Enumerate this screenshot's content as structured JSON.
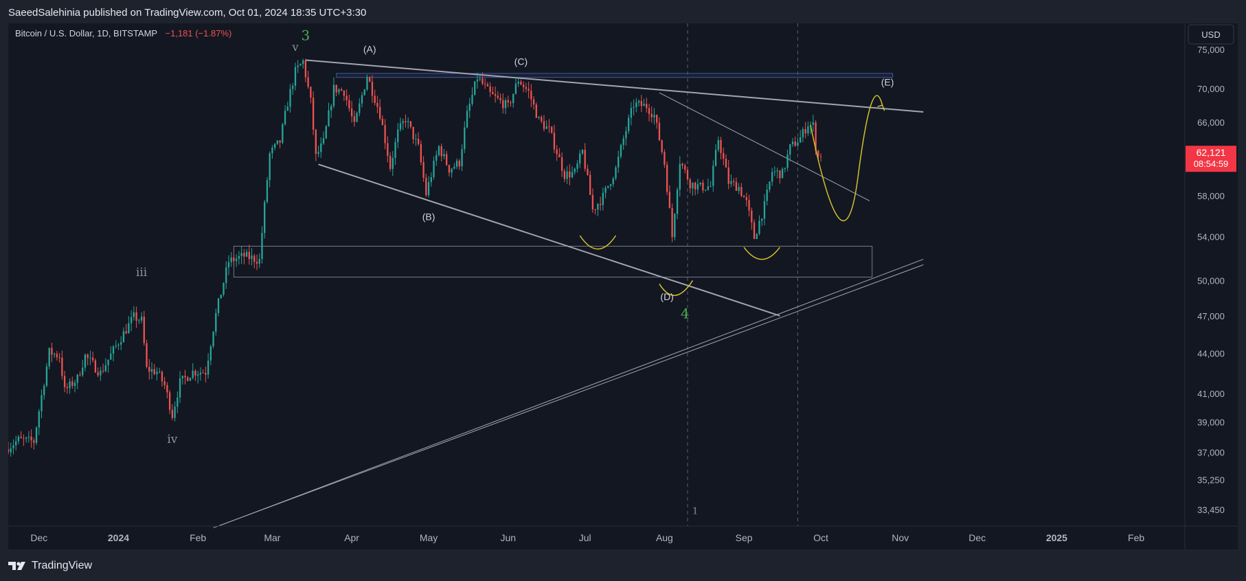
{
  "header": {
    "published_line": "SaeedSalehinia published on TradingView.com, Oct 01, 2024 18:35 UTC+3:30"
  },
  "footer": {
    "brand": "TradingView"
  },
  "colors": {
    "background": "#131722",
    "up": "#26a69a",
    "down": "#ef5350",
    "annotation_white": "#d1d4dc",
    "wave_green": "#4caf50",
    "forecast_yellow": "#d4c22a",
    "zone_blue": "#3f5a9e"
  },
  "chart_data": {
    "type": "candlestick",
    "symbol_line": "Bitcoin / U.S. Dollar, 1D, BITSTAMP",
    "change": "−1,181 (−1.87%)",
    "currency": "USD",
    "y_scale": "log",
    "ylim": [
      32500,
      78500
    ],
    "xlim": [
      "2023-11-19",
      "2025-02-20"
    ],
    "y_ticks": [
      "75,000",
      "70,000",
      "66,000",
      "58,000",
      "54,000",
      "50,000",
      "47,000",
      "44,000",
      "41,000",
      "39,000",
      "37,000",
      "35,250",
      "33,450"
    ],
    "y_tick_values": [
      75000,
      70000,
      66000,
      58000,
      54000,
      50000,
      47000,
      44000,
      41000,
      39000,
      37000,
      35250,
      33450
    ],
    "x_ticks": [
      {
        "date": "2023-12-01",
        "label": "Dec",
        "bold": false
      },
      {
        "date": "2024-01-01",
        "label": "2024",
        "bold": true
      },
      {
        "date": "2024-02-01",
        "label": "Feb",
        "bold": false
      },
      {
        "date": "2024-03-01",
        "label": "Mar",
        "bold": false
      },
      {
        "date": "2024-04-01",
        "label": "Apr",
        "bold": false
      },
      {
        "date": "2024-05-01",
        "label": "May",
        "bold": false
      },
      {
        "date": "2024-06-01",
        "label": "Jun",
        "bold": false
      },
      {
        "date": "2024-07-01",
        "label": "Jul",
        "bold": false
      },
      {
        "date": "2024-08-01",
        "label": "Aug",
        "bold": false
      },
      {
        "date": "2024-09-01",
        "label": "Sep",
        "bold": false
      },
      {
        "date": "2024-10-01",
        "label": "Oct",
        "bold": false
      },
      {
        "date": "2024-11-01",
        "label": "Nov",
        "bold": false
      },
      {
        "date": "2024-12-01",
        "label": "Dec",
        "bold": false
      },
      {
        "date": "2025-01-01",
        "label": "2025",
        "bold": true
      },
      {
        "date": "2025-02-01",
        "label": "Feb",
        "bold": false
      }
    ],
    "last_price": "62,121",
    "last_price_value": 62121,
    "countdown": "08:54:59",
    "price_path": [
      [
        "2023-11-19",
        37200
      ],
      [
        "2023-11-24",
        37800
      ],
      [
        "2023-11-30",
        37700
      ],
      [
        "2023-12-04",
        41900
      ],
      [
        "2023-12-06",
        44100
      ],
      [
        "2023-12-10",
        43800
      ],
      [
        "2023-12-12",
        41200
      ],
      [
        "2023-12-17",
        42100
      ],
      [
        "2023-12-20",
        43800
      ],
      [
        "2023-12-26",
        42500
      ],
      [
        "2024-01-02",
        44900
      ],
      [
        "2024-01-08",
        46900
      ],
      [
        "2024-01-11",
        46600
      ],
      [
        "2024-01-13",
        42800
      ],
      [
        "2024-01-17",
        42600
      ],
      [
        "2024-01-20",
        41600
      ],
      [
        "2024-01-23",
        39500
      ],
      [
        "2024-01-26",
        41800
      ],
      [
        "2024-01-31",
        42600
      ],
      [
        "2024-02-05",
        42600
      ],
      [
        "2024-02-09",
        47100
      ],
      [
        "2024-02-14",
        51700
      ],
      [
        "2024-02-20",
        52200
      ],
      [
        "2024-02-26",
        51800
      ],
      [
        "2024-02-28",
        57000
      ],
      [
        "2024-03-01",
        62400
      ],
      [
        "2024-03-05",
        63800
      ],
      [
        "2024-03-08",
        68300
      ],
      [
        "2024-03-11",
        72100
      ],
      [
        "2024-03-14",
        73400
      ],
      [
        "2024-03-17",
        68400
      ],
      [
        "2024-03-19",
        62100
      ],
      [
        "2024-03-22",
        63700
      ],
      [
        "2024-03-26",
        70000
      ],
      [
        "2024-03-30",
        69700
      ],
      [
        "2024-04-03",
        65500
      ],
      [
        "2024-04-08",
        71600
      ],
      [
        "2024-04-13",
        67000
      ],
      [
        "2024-04-17",
        61000
      ],
      [
        "2024-04-20",
        64800
      ],
      [
        "2024-04-23",
        66400
      ],
      [
        "2024-04-28",
        63100
      ],
      [
        "2024-05-01",
        58200
      ],
      [
        "2024-05-06",
        63200
      ],
      [
        "2024-05-10",
        60800
      ],
      [
        "2024-05-14",
        61500
      ],
      [
        "2024-05-17",
        66900
      ],
      [
        "2024-05-21",
        71400
      ],
      [
        "2024-05-26",
        69300
      ],
      [
        "2024-06-02",
        67800
      ],
      [
        "2024-06-06",
        71100
      ],
      [
        "2024-06-10",
        69600
      ],
      [
        "2024-06-14",
        66200
      ],
      [
        "2024-06-18",
        65100
      ],
      [
        "2024-06-24",
        60200
      ],
      [
        "2024-06-28",
        60400
      ],
      [
        "2024-07-01",
        62700
      ],
      [
        "2024-07-05",
        56600
      ],
      [
        "2024-07-09",
        57900
      ],
      [
        "2024-07-14",
        60800
      ],
      [
        "2024-07-17",
        64100
      ],
      [
        "2024-07-21",
        68100
      ],
      [
        "2024-07-26",
        67900
      ],
      [
        "2024-07-29",
        66800
      ],
      [
        "2024-08-02",
        61400
      ],
      [
        "2024-08-05",
        54000
      ],
      [
        "2024-08-08",
        61700
      ],
      [
        "2024-08-12",
        59300
      ],
      [
        "2024-08-16",
        58900
      ],
      [
        "2024-08-20",
        59000
      ],
      [
        "2024-08-23",
        64100
      ],
      [
        "2024-08-27",
        59400
      ],
      [
        "2024-08-31",
        58900
      ],
      [
        "2024-09-03",
        57300
      ],
      [
        "2024-09-06",
        53900
      ],
      [
        "2024-09-10",
        57000
      ],
      [
        "2024-09-13",
        60500
      ],
      [
        "2024-09-17",
        60300
      ],
      [
        "2024-09-20",
        63100
      ],
      [
        "2024-09-24",
        64200
      ],
      [
        "2024-09-27",
        65800
      ],
      [
        "2024-09-29",
        65600
      ],
      [
        "2024-09-30",
        63300
      ],
      [
        "2024-10-01",
        62121
      ]
    ],
    "annotations": [
      {
        "text": "3",
        "date": "2024-03-14",
        "price": 76200,
        "color": "green",
        "size": 20
      },
      {
        "text": "v",
        "date": "2024-03-10",
        "price": 74800,
        "color": "gray",
        "size": 16
      },
      {
        "text": "(A)",
        "date": "2024-04-08",
        "price": 74600,
        "color": "white",
        "size": 14
      },
      {
        "text": "(C)",
        "date": "2024-06-06",
        "price": 73000,
        "color": "white",
        "size": 14
      },
      {
        "text": "(B)",
        "date": "2024-05-01",
        "price": 55600,
        "color": "white",
        "size": 14
      },
      {
        "text": "(D)",
        "date": "2024-08-02",
        "price": 48300,
        "color": "white",
        "size": 14
      },
      {
        "text": "4",
        "date": "2024-08-09",
        "price": 46800,
        "color": "green",
        "size": 20
      },
      {
        "text": "(E)",
        "date": "2024-10-27",
        "price": 70400,
        "color": "white",
        "size": 14
      },
      {
        "text": "iii",
        "date": "2024-01-10",
        "price": 50400,
        "color": "gray",
        "size": 17
      },
      {
        "text": "iv",
        "date": "2024-01-22",
        "price": 37600,
        "color": "gray",
        "size": 17
      },
      {
        "text": "1",
        "date": "2024-08-13",
        "price": 33200,
        "color": "gray",
        "size": 13
      }
    ],
    "vertical_dashed_lines": [
      "2024-08-10",
      "2024-09-22"
    ]
  }
}
